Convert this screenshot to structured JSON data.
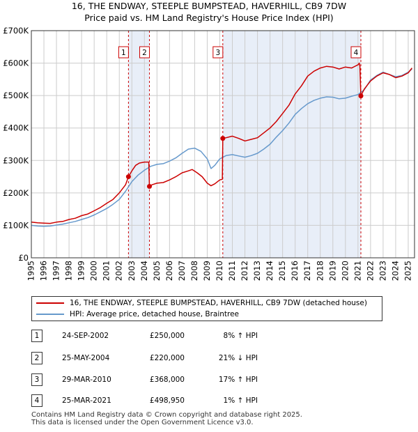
{
  "header": {
    "title": "16, THE ENDWAY, STEEPLE BUMPSTEAD, HAVERHILL, CB9 7DW",
    "subtitle": "Price paid vs. HM Land Registry's House Price Index (HPI)"
  },
  "legend": {
    "property": "16, THE ENDWAY, STEEPLE BUMPSTEAD, HAVERHILL, CB9 7DW (detached house)",
    "hpi": "HPI: Average price, detached house, Braintree"
  },
  "transactions": [
    {
      "num": "1",
      "date": "24-SEP-2002",
      "price": "£250,000",
      "hpi": "8% ↑ HPI"
    },
    {
      "num": "2",
      "date": "25-MAY-2004",
      "price": "£220,000",
      "hpi": "21% ↓ HPI"
    },
    {
      "num": "3",
      "date": "29-MAR-2010",
      "price": "£368,000",
      "hpi": "17% ↑ HPI"
    },
    {
      "num": "4",
      "date": "25-MAR-2021",
      "price": "£498,950",
      "hpi": "1% ↑ HPI"
    }
  ],
  "footer": {
    "line1": "Contains HM Land Registry data © Crown copyright and database right 2025.",
    "line2": "This data is licensed under the Open Government Licence v3.0."
  },
  "colors": {
    "property": "#cc0000",
    "hpi": "#6699cc",
    "shade": "#e8eef8",
    "grid": "#cccccc"
  },
  "chart_data": {
    "type": "line",
    "title": "16, THE ENDWAY, STEEPLE BUMPSTEAD, HAVERHILL, CB9 7DW",
    "subtitle": "Price paid vs. HM Land Registry's House Price Index (HPI)",
    "xlabel": "",
    "ylabel": "",
    "xlim": [
      1995,
      2025.5
    ],
    "ylim": [
      0,
      700000
    ],
    "grid": true,
    "yticks": [
      0,
      100000,
      200000,
      300000,
      400000,
      500000,
      600000,
      700000
    ],
    "ytick_labels": [
      "£0",
      "£100K",
      "£200K",
      "£300K",
      "£400K",
      "£500K",
      "£600K",
      "£700K"
    ],
    "xticks": [
      1995,
      1996,
      1997,
      1998,
      1999,
      2000,
      2001,
      2002,
      2003,
      2004,
      2005,
      2006,
      2007,
      2008,
      2009,
      2010,
      2011,
      2012,
      2013,
      2014,
      2015,
      2016,
      2017,
      2018,
      2019,
      2020,
      2021,
      2022,
      2023,
      2024,
      2025
    ],
    "shaded_ranges": [
      [
        2002.73,
        2004.4
      ],
      [
        2010.24,
        2021.23
      ]
    ],
    "sales": [
      {
        "label": "1",
        "x": 2002.73,
        "y": 250000
      },
      {
        "label": "2",
        "x": 2004.4,
        "y": 220000
      },
      {
        "label": "3",
        "x": 2010.24,
        "y": 368000
      },
      {
        "label": "4",
        "x": 2021.23,
        "y": 498950
      }
    ],
    "series": [
      {
        "name": "16, THE ENDWAY, STEEPLE BUMPSTEAD, HAVERHILL, CB9 7DW (detached house)",
        "x": [
          1995.0,
          1995.5,
          1996.0,
          1996.5,
          1997.0,
          1997.5,
          1998.0,
          1998.5,
          1999.0,
          1999.5,
          2000.0,
          2000.5,
          2001.0,
          2001.5,
          2002.0,
          2002.5,
          2002.73,
          2003.0,
          2003.3,
          2003.6,
          2004.0,
          2004.35,
          2004.4,
          2004.6,
          2005.0,
          2005.5,
          2006.0,
          2006.5,
          2007.0,
          2007.5,
          2007.8,
          2008.2,
          2008.6,
          2009.0,
          2009.3,
          2009.6,
          2010.0,
          2010.2,
          2010.24,
          2010.5,
          2011.0,
          2011.5,
          2012.0,
          2012.5,
          2013.0,
          2013.5,
          2014.0,
          2014.5,
          2015.0,
          2015.5,
          2016.0,
          2016.5,
          2017.0,
          2017.5,
          2018.0,
          2018.5,
          2019.0,
          2019.5,
          2020.0,
          2020.5,
          2021.0,
          2021.1,
          2021.15,
          2021.23,
          2021.5,
          2022.0,
          2022.5,
          2023.0,
          2023.5,
          2024.0,
          2024.5,
          2025.0,
          2025.3
        ],
        "y": [
          110000,
          108000,
          107000,
          106000,
          110000,
          112000,
          118000,
          122000,
          130000,
          135000,
          145000,
          155000,
          168000,
          180000,
          200000,
          225000,
          250000,
          268000,
          285000,
          292000,
          295000,
          295000,
          220000,
          225000,
          230000,
          232000,
          240000,
          250000,
          262000,
          268000,
          272000,
          262000,
          250000,
          230000,
          222000,
          228000,
          240000,
          242000,
          368000,
          370000,
          375000,
          368000,
          360000,
          365000,
          370000,
          385000,
          400000,
          420000,
          445000,
          470000,
          505000,
          530000,
          560000,
          575000,
          585000,
          590000,
          588000,
          582000,
          588000,
          585000,
          595000,
          600000,
          590000,
          498950,
          520000,
          545000,
          560000,
          570000,
          565000,
          555000,
          560000,
          570000,
          585000
        ]
      },
      {
        "name": "HPI: Average price, detached house, Braintree",
        "x": [
          1995.0,
          1995.5,
          1996.0,
          1996.5,
          1997.0,
          1997.5,
          1998.0,
          1998.5,
          1999.0,
          1999.5,
          2000.0,
          2000.5,
          2001.0,
          2001.5,
          2002.0,
          2002.5,
          2003.0,
          2003.5,
          2004.0,
          2004.5,
          2005.0,
          2005.5,
          2006.0,
          2006.5,
          2007.0,
          2007.5,
          2008.0,
          2008.5,
          2009.0,
          2009.3,
          2009.6,
          2010.0,
          2010.5,
          2011.0,
          2011.5,
          2012.0,
          2012.5,
          2013.0,
          2013.5,
          2014.0,
          2014.5,
          2015.0,
          2015.5,
          2016.0,
          2016.5,
          2017.0,
          2017.5,
          2018.0,
          2018.5,
          2019.0,
          2019.5,
          2020.0,
          2020.5,
          2021.0,
          2021.5,
          2022.0,
          2022.5,
          2023.0,
          2023.5,
          2024.0,
          2024.5,
          2025.0,
          2025.3
        ],
        "y": [
          100000,
          98000,
          97000,
          98000,
          101000,
          104000,
          108000,
          112000,
          118000,
          124000,
          132000,
          142000,
          152000,
          165000,
          180000,
          205000,
          235000,
          255000,
          270000,
          282000,
          288000,
          290000,
          298000,
          308000,
          322000,
          335000,
          338000,
          328000,
          305000,
          275000,
          285000,
          305000,
          315000,
          318000,
          314000,
          310000,
          315000,
          322000,
          335000,
          350000,
          372000,
          392000,
          415000,
          442000,
          460000,
          475000,
          485000,
          492000,
          496000,
          495000,
          490000,
          492000,
          498000,
          503000,
          518000,
          548000,
          562000,
          572000,
          565000,
          558000,
          562000,
          572000,
          582000
        ]
      }
    ]
  }
}
